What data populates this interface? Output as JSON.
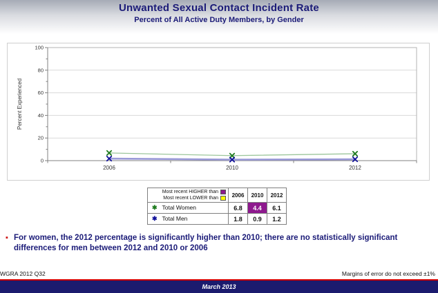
{
  "header": {
    "title": "Unwanted Sexual Contact Incident Rate",
    "subtitle": "Percent of All Active Duty Members, by Gender"
  },
  "chart_data": {
    "type": "line",
    "title": "",
    "xlabel": "",
    "ylabel": "Percent Experienced",
    "ylim": [
      0,
      100
    ],
    "yticks": [
      0,
      20,
      40,
      60,
      80,
      100
    ],
    "minor_ytick_step": 10,
    "grid": true,
    "legend_position": "table-below",
    "categories": [
      "2006",
      "2010",
      "2012"
    ],
    "series": [
      {
        "name": "Total Women",
        "values": [
          6.8,
          4.4,
          6.1
        ],
        "line_color": "#9cc69c",
        "marker_color": "#1e7a1e",
        "line_width": 1.3,
        "marker": "x"
      },
      {
        "name": "Total Men",
        "values": [
          1.8,
          0.9,
          1.2
        ],
        "line_color": "#9a9ad8",
        "marker_color": "#10109a",
        "line_width": 2.6,
        "marker": "x"
      }
    ]
  },
  "table": {
    "legend": {
      "higher_label": "Most recent HIGHER than",
      "lower_label": "Most recent LOWER than",
      "higher_color": "#8e198e",
      "lower_color": "#ffff00"
    },
    "columns": [
      "2006",
      "2010",
      "2012"
    ],
    "rows": [
      {
        "label": "Total Women",
        "marker": "✱",
        "marker_color": "#1e7a1e",
        "values": [
          "6.8",
          "4.4",
          "6.1"
        ],
        "highlights": [
          null,
          "higher",
          null
        ]
      },
      {
        "label": "Total Men",
        "marker": "✱",
        "marker_color": "#10109a",
        "values": [
          "1.8",
          "0.9",
          "1.2"
        ],
        "highlights": [
          null,
          null,
          null
        ]
      }
    ]
  },
  "bullet": {
    "marker": "▪",
    "text": "For women, the 2012 percentage is significantly higher than 2010; there are no statistically significant differences for men between 2012 and 2010 or 2006"
  },
  "footer": {
    "source": "WGRA 2012 Q32",
    "note": "Margins of error do not exceed ±1%",
    "date": "March 2013"
  },
  "colors": {
    "title_navy": "#1b1b78",
    "accent_red": "#d40000",
    "footer_navy": "#1b1b6e",
    "table_header_gray": "#b5b5b5",
    "axis_gray": "#808080",
    "gridline_gray": "#d9d9d9"
  }
}
